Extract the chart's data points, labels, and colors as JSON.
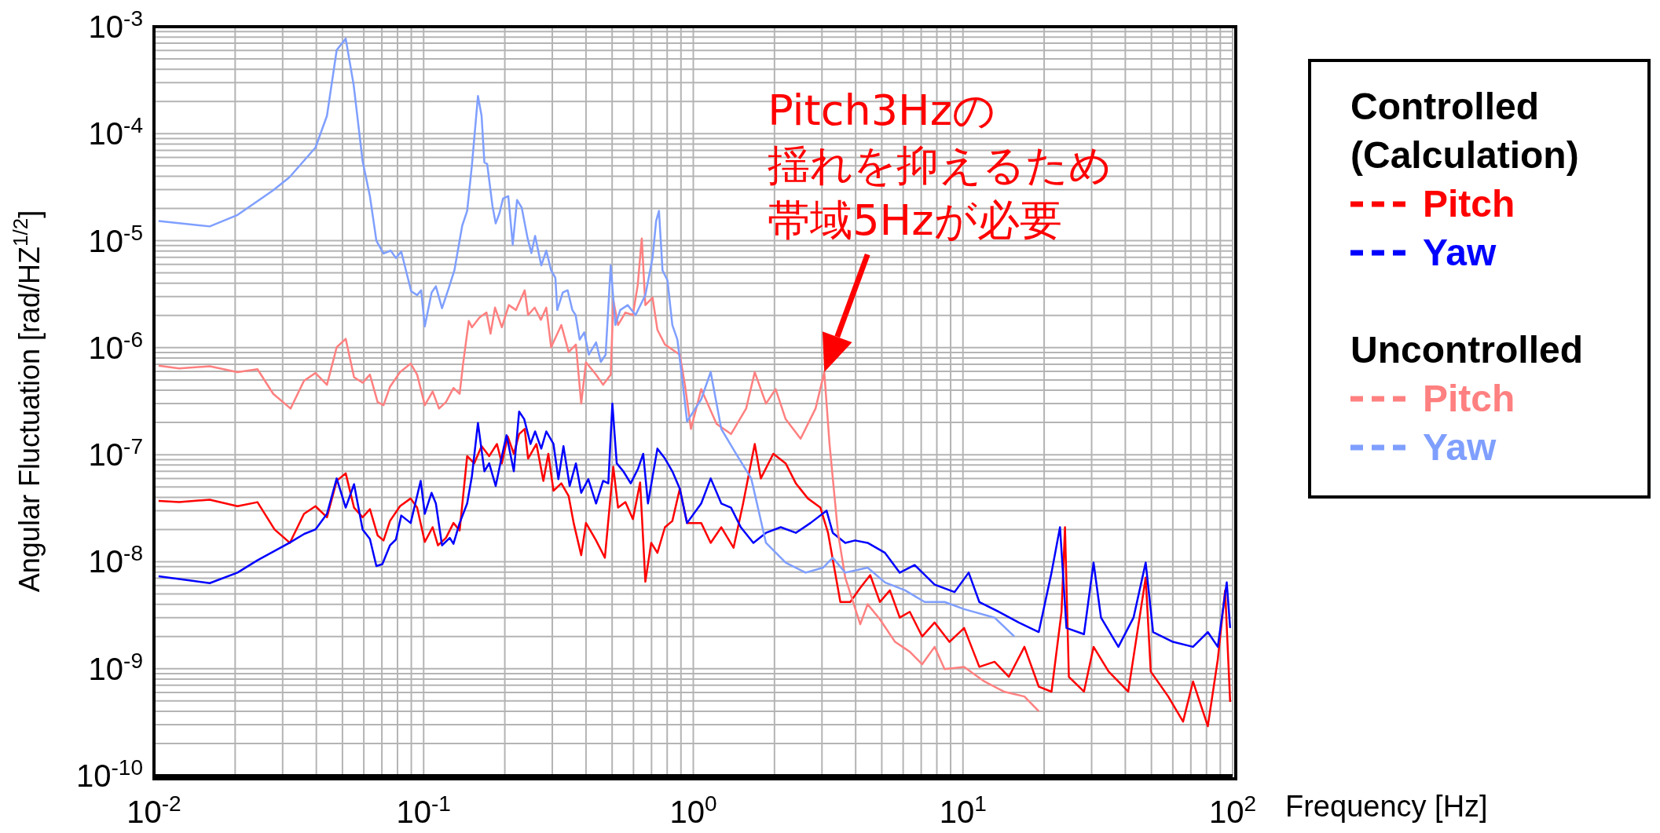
{
  "chart_data": {
    "type": "line",
    "xlabel": "Frequency [Hz]",
    "ylabel": "Angular Fluctuation [rad/HZ$^{1/2}$]",
    "legend_title": "Controlled (Calculation)",
    "legend": "right",
    "log": "xy",
    "grid": true,
    "xlim": [
      0.01,
      100
    ],
    "ylim": [
      1e-10,
      0.001
    ],
    "xticks": [
      {
        "value": 0.01,
        "label": "10$^{-2}$"
      },
      {
        "value": 0.02,
        "label": null
      },
      {
        "value": 0.03,
        "label": null
      },
      {
        "value": 0.04,
        "label": null
      },
      {
        "value": 0.05,
        "label": null
      },
      {
        "value": 0.06,
        "label": null
      },
      {
        "value": 0.07,
        "label": null
      },
      {
        "value": 0.08,
        "label": null
      },
      {
        "value": 0.09,
        "label": null
      },
      {
        "value": 0.1,
        "label": "10$^{-1}$"
      },
      {
        "value": 0.2,
        "label": null
      },
      {
        "value": 0.3,
        "label": null
      },
      {
        "value": 0.4,
        "label": null
      },
      {
        "value": 0.5,
        "label": null
      },
      {
        "value": 0.6,
        "label": null
      },
      {
        "value": 0.7,
        "label": null
      },
      {
        "value": 0.8,
        "label": null
      },
      {
        "value": 0.9,
        "label": null
      },
      {
        "value": 1,
        "label": "10$^{0}$"
      },
      {
        "value": 2,
        "label": null
      },
      {
        "value": 3,
        "label": null
      },
      {
        "value": 4,
        "label": null
      },
      {
        "value": 5,
        "label": null
      },
      {
        "value": 6,
        "label": null
      },
      {
        "value": 7,
        "label": null
      },
      {
        "value": 8,
        "label": null
      },
      {
        "value": 9,
        "label": null
      },
      {
        "value": 10,
        "label": "10$^{1}$"
      },
      {
        "value": 20,
        "label": null
      },
      {
        "value": 30,
        "label": null
      },
      {
        "value": 40,
        "label": null
      },
      {
        "value": 50,
        "label": null
      },
      {
        "value": 60,
        "label": null
      },
      {
        "value": 70,
        "label": null
      },
      {
        "value": 80,
        "label": null
      },
      {
        "value": 90,
        "label": null
      },
      {
        "value": 100,
        "label": "10$^{2}$"
      }
    ],
    "yticks": [
      {
        "value": 1e-10,
        "label": "10$^{-10}$"
      },
      {
        "value": 2e-10,
        "label": null
      },
      {
        "value": 3e-10,
        "label": null
      },
      {
        "value": 4e-10,
        "label": null
      },
      {
        "value": 5e-10,
        "label": null
      },
      {
        "value": 6e-10,
        "label": null
      },
      {
        "value": 7e-10,
        "label": null
      },
      {
        "value": 8e-10,
        "label": null
      },
      {
        "value": 9e-10,
        "label": null
      },
      {
        "value": 1e-09,
        "label": "10$^{-9}$"
      },
      {
        "value": 2e-09,
        "label": null
      },
      {
        "value": 3e-09,
        "label": null
      },
      {
        "value": 4e-09,
        "label": null
      },
      {
        "value": 5e-09,
        "label": null
      },
      {
        "value": 6e-09,
        "label": null
      },
      {
        "value": 7e-09,
        "label": null
      },
      {
        "value": 8e-09,
        "label": null
      },
      {
        "value": 9e-09,
        "label": null
      },
      {
        "value": 1e-08,
        "label": "10$^{-8}$"
      },
      {
        "value": 2e-08,
        "label": null
      },
      {
        "value": 3e-08,
        "label": null
      },
      {
        "value": 4e-08,
        "label": null
      },
      {
        "value": 5e-08,
        "label": null
      },
      {
        "value": 6e-08,
        "label": null
      },
      {
        "value": 7e-08,
        "label": null
      },
      {
        "value": 8e-08,
        "label": null
      },
      {
        "value": 9e-08,
        "label": null
      },
      {
        "value": 1e-07,
        "label": "10$^{-7}$"
      },
      {
        "value": 2e-07,
        "label": null
      },
      {
        "value": 3e-07,
        "label": null
      },
      {
        "value": 4e-07,
        "label": null
      },
      {
        "value": 5e-07,
        "label": null
      },
      {
        "value": 6e-07,
        "label": null
      },
      {
        "value": 7e-07,
        "label": null
      },
      {
        "value": 8e-07,
        "label": null
      },
      {
        "value": 9e-07,
        "label": null
      },
      {
        "value": 1e-06,
        "label": "10$^{-6}$"
      },
      {
        "value": 2e-06,
        "label": null
      },
      {
        "value": 3e-06,
        "label": null
      },
      {
        "value": 4e-06,
        "label": null
      },
      {
        "value": 5e-06,
        "label": null
      },
      {
        "value": 6e-06,
        "label": null
      },
      {
        "value": 7e-06,
        "label": null
      },
      {
        "value": 8e-06,
        "label": null
      },
      {
        "value": 9e-06,
        "label": null
      },
      {
        "value": 1e-05,
        "label": "10$^{-5}$"
      },
      {
        "value": 2e-05,
        "label": null
      },
      {
        "value": 3e-05,
        "label": null
      },
      {
        "value": 4e-05,
        "label": null
      },
      {
        "value": 5e-05,
        "label": null
      },
      {
        "value": 6e-05,
        "label": null
      },
      {
        "value": 7e-05,
        "label": null
      },
      {
        "value": 8e-05,
        "label": null
      },
      {
        "value": 9e-05,
        "label": null
      },
      {
        "value": 0.0001,
        "label": "10$^{-4}$"
      },
      {
        "value": 0.0002,
        "label": null
      },
      {
        "value": 0.0003,
        "label": null
      },
      {
        "value": 0.0004,
        "label": null
      },
      {
        "value": 0.0005,
        "label": null
      },
      {
        "value": 0.0006,
        "label": null
      },
      {
        "value": 0.0007,
        "label": null
      },
      {
        "value": 0.0008,
        "label": null
      },
      {
        "value": 0.0009,
        "label": null
      },
      {
        "value": 0.001,
        "label": "10$^{-3}$"
      }
    ],
    "annotations": [
      "Pitch3Hzの",
      "揺れを抑えるため",
      {
        "text": "帯域5Hzが必要",
        "x": 3.06,
        "y": 5.9e-07
      },
      "Uncontrolled"
    ],
    "series": [
      {
        "name": "Pitch",
        "color": "#ff0000",
        "x": [
          0.0104,
          0.0124,
          0.0161,
          0.0204,
          0.0242,
          0.028,
          0.0319,
          0.036,
          0.0397,
          0.0438,
          0.0476,
          0.0514,
          0.0552,
          0.0594,
          0.0632,
          0.0675,
          0.071,
          0.075,
          0.0817,
          0.0895,
          0.0946,
          0.101,
          0.108,
          0.113,
          0.121,
          0.129,
          0.136,
          0.145,
          0.154,
          0.164,
          0.175,
          0.187,
          0.195,
          0.205,
          0.216,
          0.226,
          0.237,
          0.244,
          0.262,
          0.278,
          0.29,
          0.303,
          0.324,
          0.345,
          0.36,
          0.384,
          0.4,
          0.436,
          0.47,
          0.505,
          0.526,
          0.56,
          0.597,
          0.635,
          0.664,
          0.698,
          0.736,
          0.785,
          0.836,
          0.891,
          0.948,
          1.07,
          1.16,
          1.27,
          1.41,
          1.53,
          1.69,
          1.78,
          1.98,
          2.2,
          2.4,
          2.66,
          2.96,
          3.16,
          3.51,
          3.82,
          4.16,
          4.53,
          4.92,
          5.36,
          5.83,
          6.35,
          7.06,
          7.85,
          8.91,
          10.1,
          11.5,
          13.1,
          14.8,
          16.9,
          19.1,
          21.3,
          23.2,
          23.9,
          24.7,
          28.1,
          30.5,
          34.7,
          41,
          47.6,
          49.7,
          57.7,
          65.5,
          71.3,
          80.9,
          88.1,
          93.8,
          97.9
        ],
        "values": [
          3.7e-08,
          3.6e-08,
          3.8e-08,
          3.3e-08,
          3.6e-08,
          2e-08,
          1.5e-08,
          2.8e-08,
          3.3e-08,
          2.6e-08,
          5.7e-08,
          6.7e-08,
          3.2e-08,
          2.6e-08,
          3.1e-08,
          1.76e-08,
          1.58e-08,
          2.4e-08,
          3.3e-08,
          3.9e-08,
          3.2e-08,
          1.53e-08,
          2.1e-08,
          1.42e-08,
          1.67e-08,
          2.3e-08,
          1.96e-08,
          9.7e-08,
          8.3e-08,
          1.2e-07,
          9.7e-08,
          1.26e-07,
          8.3e-08,
          1.48e-07,
          1.02e-07,
          1.56e-07,
          1.74e-07,
          9.2e-08,
          1.26e-07,
          5.7e-08,
          1.02e-07,
          4.6e-08,
          5.4e-08,
          4.1e-08,
          2.3e-08,
          1.15e-08,
          2.3e-08,
          1.58e-08,
          1.09e-08,
          7.7e-08,
          3.2e-08,
          3.6e-08,
          2.5e-08,
          5.5e-08,
          6.5e-09,
          1.5e-08,
          1.21e-08,
          2.1e-08,
          2.4e-08,
          4.8e-08,
          2.3e-08,
          2.3e-08,
          1.5e-08,
          2.1e-08,
          1.35e-08,
          3.5e-08,
          1.26e-07,
          6e-08,
          1.02e-07,
          8.3e-08,
          5.4e-08,
          3.9e-08,
          3.2e-08,
          1.86e-08,
          4.2e-09,
          4.2e-09,
          5.7e-09,
          7.5e-09,
          4.2e-09,
          5.4e-09,
          3e-09,
          3.4e-09,
          2e-09,
          2.7e-09,
          1.78e-09,
          2.4e-09,
          1.04e-09,
          1.16e-09,
          8.4e-10,
          1.6e-09,
          6.8e-10,
          6.1e-10,
          3.4e-09,
          2.1e-08,
          8.4e-10,
          6.1e-10,
          1.6e-09,
          9.4e-10,
          6.1e-10,
          7.1e-09,
          9.4e-10,
          5.5e-10,
          3.2e-10,
          7.6e-10,
          2.9e-10,
          1.22e-09,
          5.4e-09,
          4.9e-10
        ]
      },
      {
        "name": "Yaw",
        "color": "#0000ff",
        "x": [
          0.0104,
          0.0161,
          0.0204,
          0.0242,
          0.0318,
          0.0361,
          0.0397,
          0.0438,
          0.0476,
          0.0514,
          0.0552,
          0.0594,
          0.0632,
          0.0668,
          0.0703,
          0.075,
          0.0789,
          0.0826,
          0.0895,
          0.0975,
          0.101,
          0.107,
          0.111,
          0.117,
          0.125,
          0.129,
          0.136,
          0.145,
          0.151,
          0.159,
          0.168,
          0.175,
          0.185,
          0.195,
          0.203,
          0.216,
          0.226,
          0.236,
          0.249,
          0.259,
          0.273,
          0.285,
          0.303,
          0.316,
          0.33,
          0.348,
          0.367,
          0.384,
          0.408,
          0.436,
          0.463,
          0.484,
          0.501,
          0.52,
          0.55,
          0.586,
          0.624,
          0.652,
          0.679,
          0.736,
          0.785,
          0.836,
          0.891,
          0.948,
          1.07,
          1.16,
          1.27,
          1.38,
          1.5,
          1.67,
          1.86,
          2.11,
          2.4,
          2.72,
          3.12,
          3.29,
          3.66,
          3.98,
          4.43,
          5.14,
          5.83,
          6.62,
          7.85,
          9.31,
          10.5,
          11.5,
          13.6,
          16.1,
          19.1,
          21.3,
          22.9,
          24.2,
          28.1,
          30.5,
          32.5,
          37.7,
          42.9,
          47.6,
          50.7,
          60.1,
          71.3,
          80.9,
          88.1,
          95.1,
          97.9
        ],
        "values": [
          7.3e-09,
          6.3e-09,
          7.9e-09,
          1.03e-08,
          1.5e-08,
          1.82e-08,
          2e-08,
          2.8e-08,
          6e-08,
          3.2e-08,
          5.3e-08,
          2e-08,
          1.63e-08,
          9.1e-09,
          9.5e-09,
          1.42e-08,
          1.61e-08,
          2.7e-08,
          2.3e-08,
          5.7e-08,
          2.8e-08,
          4.4e-08,
          3.5e-08,
          1.42e-08,
          1.67e-08,
          1.47e-08,
          2.3e-08,
          3.5e-08,
          6.3e-08,
          1.98e-07,
          7e-08,
          8.3e-08,
          5.1e-08,
          9.7e-08,
          1.52e-07,
          7e-08,
          2.53e-07,
          2.15e-07,
          1.26e-07,
          1.65e-07,
          1.14e-07,
          1.65e-07,
          1.26e-07,
          5.9e-08,
          1.2e-07,
          5.1e-08,
          8.3e-08,
          4.4e-08,
          5.9e-08,
          3.5e-08,
          5.7e-08,
          5.4e-08,
          3e-07,
          8.3e-08,
          7e-08,
          5.4e-08,
          7.4e-08,
          1.02e-07,
          3.5e-08,
          1.14e-07,
          9.2e-08,
          7e-08,
          4.8e-08,
          2.3e-08,
          3.5e-08,
          6e-08,
          3.5e-08,
          3.2e-08,
          2.1e-08,
          1.5e-08,
          1.86e-08,
          2.1e-08,
          1.86e-08,
          2.3e-08,
          3e-08,
          1.86e-08,
          1.5e-08,
          1.58e-08,
          1.5e-08,
          1.21e-08,
          7.9e-09,
          9.3e-09,
          6.1e-09,
          5.2e-09,
          7.9e-09,
          4.2e-09,
          3.4e-09,
          2.7e-09,
          2.2e-09,
          7.9e-09,
          2.1e-08,
          2.4e-09,
          2.1e-09,
          9.8e-09,
          3e-09,
          1.6e-09,
          3e-09,
          9.8e-09,
          2.2e-09,
          1.78e-09,
          1.6e-09,
          2.2e-09,
          1.6e-09,
          6.4e-09,
          2.4e-09
        ]
      },
      {
        "name": "Pitch",
        "color": "#ff8080",
        "x": [
          0.0104,
          0.0124,
          0.0161,
          0.0204,
          0.0242,
          0.0277,
          0.0321,
          0.036,
          0.0397,
          0.0438,
          0.0476,
          0.0514,
          0.0552,
          0.0594,
          0.0632,
          0.0675,
          0.071,
          0.075,
          0.0817,
          0.0895,
          0.0946,
          0.101,
          0.108,
          0.114,
          0.121,
          0.129,
          0.136,
          0.14,
          0.147,
          0.151,
          0.161,
          0.171,
          0.177,
          0.184,
          0.195,
          0.207,
          0.22,
          0.237,
          0.244,
          0.258,
          0.272,
          0.285,
          0.297,
          0.324,
          0.345,
          0.367,
          0.384,
          0.4,
          0.436,
          0.463,
          0.494,
          0.505,
          0.526,
          0.56,
          0.597,
          0.622,
          0.644,
          0.664,
          0.706,
          0.736,
          0.785,
          0.836,
          0.891,
          0.931,
          0.98,
          1.07,
          1.22,
          1.38,
          1.57,
          1.69,
          1.86,
          2.02,
          2.2,
          2.5,
          2.84,
          3.06,
          3.2,
          3.44,
          3.66,
          4.16,
          4.43,
          4.92,
          5.6,
          6.35,
          7.06,
          7.85,
          8.55,
          10.1,
          12,
          14.2,
          16.9,
          19.1
        ],
        "values": [
          6.8e-07,
          6.4e-07,
          6.7e-07,
          5.9e-07,
          6.3e-07,
          3.7e-07,
          2.7e-07,
          4.9e-07,
          5.8e-07,
          4.5e-07,
          1.01e-06,
          1.21e-06,
          5.3e-07,
          4.7e-07,
          5.6e-07,
          3.1e-07,
          2.9e-07,
          4.3e-07,
          5.9e-07,
          7.1e-07,
          5.6e-07,
          2.9e-07,
          3.9e-07,
          2.7e-07,
          3.1e-07,
          4.2e-07,
          3.7e-07,
          7e-07,
          1.78e-06,
          1.55e-06,
          1.91e-06,
          2.13e-06,
          1.35e-06,
          2.37e-06,
          1.55e-06,
          2.5e-06,
          2.25e-06,
          3.44e-06,
          2.02e-06,
          2.37e-06,
          1.82e-06,
          2.37e-06,
          1.01e-06,
          1.63e-06,
          9.1e-07,
          1.07e-06,
          3e-07,
          7.3e-07,
          5.6e-07,
          4.5e-07,
          5.6e-07,
          2.78e-06,
          1.63e-06,
          2.13e-06,
          2.02e-06,
          3.83e-06,
          1.05e-05,
          2.5e-06,
          2.94e-06,
          1.47e-06,
          1.07e-06,
          9.6e-07,
          8.6e-07,
          4.5e-07,
          1.74e-07,
          4.1e-07,
          1.94e-07,
          1.56e-07,
          2.7e-07,
          5.9e-07,
          3e-07,
          4.1e-07,
          2.15e-07,
          1.41e-07,
          2.7e-07,
          5.9e-07,
          1.26e-07,
          1.86e-08,
          7.1e-09,
          2.6e-09,
          4e-09,
          2.9e-09,
          1.78e-09,
          1.44e-09,
          1.1e-09,
          1.6e-09,
          9.9e-10,
          1.04e-09,
          7.6e-10,
          6.1e-10,
          5.5e-10,
          4e-10
        ]
      },
      {
        "name": "Yaw",
        "color": "#7f9fff",
        "x": [
          0.0104,
          0.0161,
          0.0204,
          0.0277,
          0.0318,
          0.0397,
          0.0438,
          0.0476,
          0.0514,
          0.055,
          0.0594,
          0.0632,
          0.0668,
          0.071,
          0.0755,
          0.0789,
          0.0826,
          0.0899,
          0.0946,
          0.0979,
          0.101,
          0.107,
          0.111,
          0.117,
          0.124,
          0.13,
          0.139,
          0.145,
          0.151,
          0.159,
          0.164,
          0.168,
          0.172,
          0.18,
          0.185,
          0.191,
          0.197,
          0.206,
          0.214,
          0.222,
          0.231,
          0.243,
          0.251,
          0.259,
          0.273,
          0.285,
          0.297,
          0.308,
          0.313,
          0.328,
          0.342,
          0.356,
          0.366,
          0.379,
          0.394,
          0.41,
          0.436,
          0.454,
          0.473,
          0.494,
          0.514,
          0.536,
          0.571,
          0.611,
          0.664,
          0.706,
          0.728,
          0.746,
          0.769,
          0.802,
          0.836,
          0.873,
          0.91,
          0.948,
          1.07,
          1.16,
          1.27,
          1.44,
          1.64,
          1.86,
          2.2,
          2.61,
          3.03,
          3.29,
          3.66,
          4.43,
          5.14,
          6.1,
          7.21,
          8.55,
          10.1,
          13.1,
          15.5
        ],
        "values": [
          1.53e-05,
          1.36e-05,
          1.74e-05,
          2.96e-05,
          3.92e-05,
          7.41e-05,
          0.000147,
          0.000605,
          0.000774,
          0.000287,
          5.51e-05,
          2.61e-05,
          1e-05,
          7.59e-06,
          8.07e-06,
          6.89e-06,
          7.91e-06,
          3.37e-06,
          3.1e-06,
          3.44e-06,
          1.58e-06,
          3.27e-06,
          3.75e-06,
          2.34e-06,
          3.63e-06,
          5.27e-06,
          1.38e-05,
          1.9e-05,
          5.06e-05,
          0.000225,
          0.000147,
          5.38e-05,
          5.22e-05,
          2.11e-05,
          1.45e-05,
          1.8e-05,
          2.48e-05,
          2.61e-05,
          9.18e-06,
          2.4e-05,
          2.04e-05,
          1.05e-05,
          7.66e-06,
          1.11e-05,
          5.87e-06,
          8.07e-06,
          5.27e-06,
          4.5e-06,
          2.25e-06,
          3.27e-06,
          3.44e-06,
          2.25e-06,
          2.02e-06,
          1.19e-06,
          1.39e-06,
          8.61e-07,
          1.12e-06,
          7.35e-07,
          8.61e-07,
          5.87e-06,
          1.63e-06,
          2.25e-06,
          2.5e-06,
          2.02e-06,
          3.1e-06,
          6.89e-06,
          1.53e-05,
          1.9e-05,
          5.27e-06,
          4.27e-06,
          1.63e-06,
          1.19e-06,
          5.06e-07,
          2.04e-07,
          3.3e-07,
          5.93e-07,
          1.74e-07,
          1.02e-07,
          6e-08,
          1.5e-08,
          9.8e-09,
          7.9e-09,
          8.8e-09,
          1.09e-08,
          7.9e-09,
          8.8e-09,
          6.4e-09,
          5.4e-09,
          4.2e-09,
          4.2e-09,
          3.6e-09,
          3e-09,
          2e-09
        ]
      }
    ]
  }
}
